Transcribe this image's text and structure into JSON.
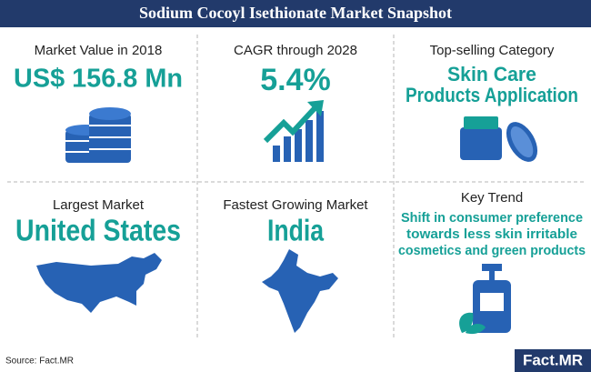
{
  "header": {
    "title": "Sodium Cocoyl Isethionate Market Snapshot"
  },
  "cells": [
    {
      "label": "Market Value in 2018",
      "value_lines": [
        "US$ 156.8 Mn"
      ]
    },
    {
      "label": "CAGR through 2028",
      "value_lines": [
        "5.4%"
      ]
    },
    {
      "label": "Top-selling Category",
      "value_lines": [
        "Skin Care",
        "Products Application"
      ]
    },
    {
      "label": "Largest Market",
      "value_lines": [
        "United States"
      ]
    },
    {
      "label": "Fastest Growing Market",
      "value_lines": [
        "India"
      ]
    },
    {
      "label": "Key Trend",
      "value_lines": [
        "Shift in consumer preference",
        "towards less skin irritable",
        "cosmetics and green products"
      ]
    }
  ],
  "footer": {
    "source": "Source: Fact.MR",
    "logo": "Fact.MR"
  }
}
